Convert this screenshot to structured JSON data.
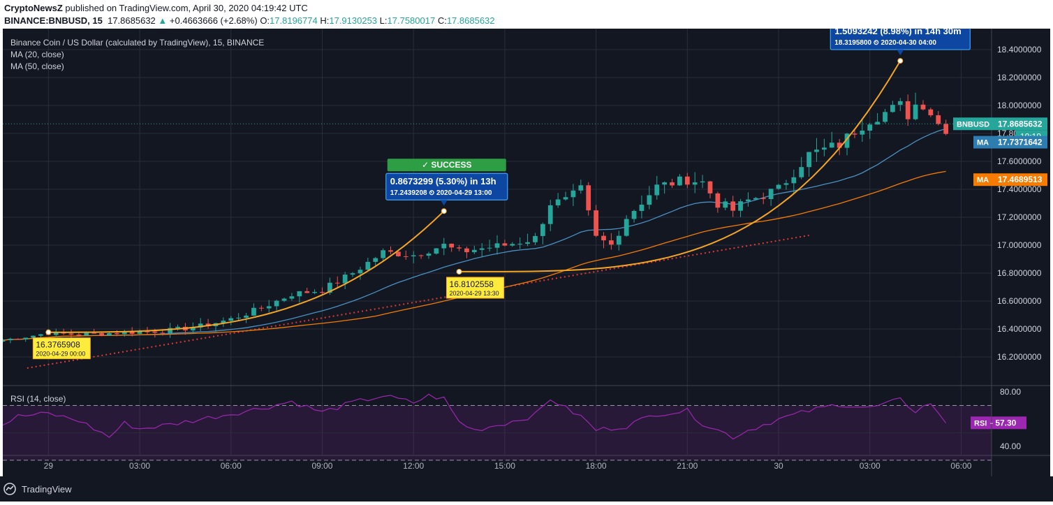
{
  "header": {
    "publisher": "CryptoNewsZ",
    "published_text": "published on TradingView.com, April 30, 2020 04:19:42 UTC",
    "symbol": "BINANCE:BNBUSD, 15",
    "last": "17.8685632",
    "arrow": "▲",
    "change": "+0.4663666 (+2.68%)",
    "o_label": "O:",
    "o": "17.8196774",
    "h_label": "H:",
    "h": "17.9130253",
    "l_label": "L:",
    "l": "17.7580017",
    "c_label": "C:",
    "c": "17.8685632"
  },
  "legend": {
    "title": "Binance Coin / US Dollar (calculated by TradingView), 15, BINANCE",
    "ma1": "MA (20, close)",
    "ma2": "MA (50, close)",
    "rsi": "RSI (14, close)"
  },
  "colors": {
    "background": "#131722",
    "grid": "#2a2e39",
    "up": "#26a69a",
    "down": "#ef5350",
    "ma20": "#4a90c2",
    "ma50": "#f57c00",
    "rsi": "#9c27b0",
    "curve": "#f5a623",
    "trend": "#e53935",
    "callout_blue": "#1565c0",
    "callout_yellow": "#ffeb3b",
    "success": "#2e9e45"
  },
  "chart_data": [
    {
      "type": "candlestick",
      "title": "Binance Coin / US Dollar (calculated by TradingView), 15, BINANCE",
      "interval_minutes": 15,
      "x_axis_ticks": [
        "29",
        "03:00",
        "06:00",
        "09:00",
        "12:00",
        "15:00",
        "18:00",
        "21:00",
        "30",
        "03:00",
        "06:00"
      ],
      "x_start_hour": -1.5,
      "x_end_hour": 31.0,
      "y_axis_ticks": [
        "18.4000000",
        "18.2000000",
        "18.0000000",
        "17.8000000",
        "17.6000000",
        "17.4000000",
        "17.2000000",
        "17.0000000",
        "16.8000000",
        "16.6000000",
        "16.4000000",
        "16.2000000"
      ],
      "ylim": [
        16.0,
        18.55
      ],
      "grid": true,
      "anchors": [
        [
          -1.5,
          16.32
        ],
        [
          0,
          16.37
        ],
        [
          1,
          16.36
        ],
        [
          2,
          16.37
        ],
        [
          3,
          16.38
        ],
        [
          4,
          16.39
        ],
        [
          5,
          16.42
        ],
        [
          6,
          16.47
        ],
        [
          7,
          16.55
        ],
        [
          8,
          16.65
        ],
        [
          9,
          16.68
        ],
        [
          10,
          16.8
        ],
        [
          11,
          16.95
        ],
        [
          12,
          16.93
        ],
        [
          13,
          17.0
        ],
        [
          13.5,
          16.95
        ],
        [
          14,
          16.97
        ],
        [
          15,
          17.0
        ],
        [
          16,
          17.05
        ],
        [
          16.5,
          17.3
        ],
        [
          17,
          17.32
        ],
        [
          17.5,
          17.4
        ],
        [
          18,
          17.05
        ],
        [
          18.5,
          17.0
        ],
        [
          19,
          17.2
        ],
        [
          20,
          17.42
        ],
        [
          21,
          17.47
        ],
        [
          21.5,
          17.45
        ],
        [
          22,
          17.3
        ],
        [
          22.5,
          17.25
        ],
        [
          23,
          17.32
        ],
        [
          24,
          17.4
        ],
        [
          25,
          17.65
        ],
        [
          26,
          17.72
        ],
        [
          26.5,
          17.82
        ],
        [
          27,
          17.9
        ],
        [
          28,
          18.0
        ],
        [
          28.3,
          17.92
        ],
        [
          28.6,
          18.05
        ],
        [
          29,
          17.95
        ],
        [
          29.4,
          17.82
        ],
        [
          29.7,
          17.87
        ]
      ],
      "price_labels": [
        {
          "name": "BNBUSD",
          "value": 17.8685632,
          "text": "17.8685632",
          "timer": "10:19"
        },
        {
          "name": "MA",
          "value": 17.7371642,
          "text": "17.7371642"
        },
        {
          "name": "MA",
          "value": 17.4689513,
          "text": "17.4689513"
        }
      ],
      "annotations": [
        {
          "kind": "point",
          "x": 0.0,
          "y": 16.3765908,
          "value": "16.3765908",
          "date": "2020-04-29 00:00"
        },
        {
          "kind": "point",
          "x": 13.0,
          "y": 17.2439208,
          "change": "0.8673299 (5.30%) in 13h",
          "value": "17.2439208",
          "date": "2020-04-29  13:00",
          "success": "SUCCESS"
        },
        {
          "kind": "point",
          "x": 13.5,
          "y": 16.8102558,
          "value": "16.8102558",
          "date": "2020-04-29 13:30"
        },
        {
          "kind": "point",
          "x": 28.0,
          "y": 18.31958,
          "change": "1.5093242 (8.98%) in 14h 30m",
          "value": "18.3195800",
          "date": "2020-04-30  04:00"
        }
      ]
    },
    {
      "type": "line",
      "series": [
        {
          "name": "RSI",
          "last": 57.3
        }
      ],
      "ylim": [
        34,
        84
      ],
      "y_axis_ticks": [
        "80.00",
        "40.00"
      ],
      "bands": [
        70,
        30
      ],
      "rsi_label": "RSI",
      "rsi_value": "57.30",
      "anchors": [
        [
          -1.5,
          56
        ],
        [
          -1,
          62
        ],
        [
          0,
          64
        ],
        [
          1,
          59
        ],
        [
          2,
          47
        ],
        [
          2.5,
          57
        ],
        [
          3,
          53
        ],
        [
          4,
          56
        ],
        [
          5,
          60
        ],
        [
          6,
          64
        ],
        [
          7,
          68
        ],
        [
          8,
          73
        ],
        [
          9,
          65
        ],
        [
          10,
          72
        ],
        [
          11,
          77
        ],
        [
          12,
          72
        ],
        [
          12.5,
          77
        ],
        [
          13,
          75
        ],
        [
          13.5,
          58
        ],
        [
          14,
          52
        ],
        [
          15,
          57
        ],
        [
          16,
          63
        ],
        [
          16.5,
          75
        ],
        [
          17,
          68
        ],
        [
          17.5,
          62
        ],
        [
          18,
          52
        ],
        [
          19,
          55
        ],
        [
          20,
          64
        ],
        [
          21,
          66
        ],
        [
          21.5,
          57
        ],
        [
          22,
          52
        ],
        [
          22.5,
          47
        ],
        [
          23,
          52
        ],
        [
          24,
          60
        ],
        [
          25,
          66
        ],
        [
          26,
          71
        ],
        [
          27,
          68
        ],
        [
          28,
          74
        ],
        [
          28.5,
          66
        ],
        [
          29,
          72
        ],
        [
          29.4,
          58
        ],
        [
          29.7,
          57.3
        ]
      ]
    }
  ],
  "brand": {
    "name": "TradingView"
  }
}
